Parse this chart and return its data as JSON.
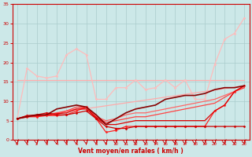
{
  "background_color": "#cce8e8",
  "grid_color": "#aacccc",
  "xlabel": "Vent moyen/en rafales ( km/h )",
  "xlabel_color": "#cc0000",
  "tick_color": "#cc0000",
  "arrow_color": "#cc0000",
  "xlim": [
    -0.5,
    23.5
  ],
  "ylim": [
    0,
    35
  ],
  "yticks": [
    0,
    5,
    10,
    15,
    20,
    25,
    30,
    35
  ],
  "xticks": [
    0,
    1,
    2,
    3,
    4,
    5,
    6,
    7,
    8,
    9,
    10,
    11,
    12,
    13,
    14,
    15,
    16,
    17,
    18,
    19,
    20,
    21,
    22,
    23
  ],
  "lines": [
    {
      "x": [
        0,
        1,
        2,
        3,
        4,
        5,
        6,
        7,
        8,
        9,
        10,
        11,
        12,
        13,
        14,
        15,
        16,
        17,
        18,
        19,
        20,
        21,
        22,
        23
      ],
      "y": [
        15.5,
        15.5,
        15.5,
        15.5,
        15.5,
        15.5,
        15.5,
        15.5,
        15.5,
        15.5,
        15.5,
        15.5,
        15.5,
        15.5,
        15.5,
        15.5,
        15.5,
        15.5,
        15.5,
        15.5,
        15.5,
        15.5,
        15.5,
        15.5
      ],
      "color": "#ffaaaa",
      "lw": 0.9,
      "marker": null
    },
    {
      "x": [
        0,
        1,
        2,
        3,
        4,
        5,
        6,
        7,
        8,
        9,
        10,
        11,
        12,
        13,
        14,
        15,
        16,
        17,
        18,
        19,
        20,
        21,
        22,
        23
      ],
      "y": [
        5.5,
        18.5,
        16.5,
        16.0,
        16.5,
        22.0,
        23.5,
        22.0,
        10.5,
        10.5,
        13.5,
        13.5,
        15.5,
        13.0,
        13.5,
        15.5,
        13.5,
        15.5,
        10.5,
        10.5,
        19.5,
        26.0,
        27.5,
        31.5
      ],
      "color": "#ffbbbb",
      "lw": 0.9,
      "marker": "D",
      "ms": 1.5
    },
    {
      "x": [
        0,
        23
      ],
      "y": [
        5.5,
        14.0
      ],
      "color": "#ffaaaa",
      "lw": 0.9,
      "marker": null
    },
    {
      "x": [
        0,
        1,
        2,
        3,
        4,
        5,
        6,
        7,
        8,
        9,
        10,
        11,
        12,
        13,
        14,
        15,
        16,
        17,
        18,
        19,
        20,
        21,
        22,
        23
      ],
      "y": [
        5.5,
        6.0,
        6.3,
        6.5,
        6.5,
        7.5,
        8.0,
        8.5,
        6.0,
        5.0,
        5.5,
        6.5,
        7.0,
        7.0,
        7.5,
        8.0,
        8.5,
        9.0,
        9.5,
        10.0,
        10.5,
        11.5,
        12.5,
        13.5
      ],
      "color": "#ff6666",
      "lw": 0.9,
      "marker": null
    },
    {
      "x": [
        0,
        1,
        2,
        3,
        4,
        5,
        6,
        7,
        8,
        9,
        10,
        11,
        12,
        13,
        14,
        15,
        16,
        17,
        18,
        19,
        20,
        21,
        22,
        23
      ],
      "y": [
        5.5,
        6.0,
        6.3,
        6.5,
        7.0,
        7.5,
        8.5,
        8.5,
        6.0,
        4.5,
        5.0,
        5.5,
        6.0,
        6.0,
        6.5,
        7.0,
        7.5,
        8.0,
        8.5,
        9.0,
        9.5,
        11.0,
        12.5,
        13.5
      ],
      "color": "#ff4444",
      "lw": 0.9,
      "marker": null
    },
    {
      "x": [
        0,
        1,
        2,
        3,
        4,
        5,
        6,
        7,
        8,
        9,
        10,
        11,
        12,
        13,
        14,
        15,
        16,
        17,
        18,
        19,
        20,
        21,
        22,
        23
      ],
      "y": [
        5.5,
        6.0,
        6.0,
        6.3,
        6.3,
        6.5,
        7.5,
        8.5,
        5.5,
        2.0,
        2.5,
        3.5,
        3.5,
        3.5,
        3.5,
        3.5,
        3.5,
        3.5,
        3.5,
        3.5,
        7.5,
        9.0,
        12.5,
        14.0
      ],
      "color": "#ff2222",
      "lw": 0.9,
      "marker": "D",
      "ms": 1.5
    },
    {
      "x": [
        0,
        1,
        2,
        3,
        4,
        5,
        6,
        7,
        8,
        9,
        10,
        11,
        12,
        13,
        14,
        15,
        16,
        17,
        18,
        19,
        20,
        21,
        22,
        23
      ],
      "y": [
        5.5,
        6.2,
        6.2,
        6.5,
        6.8,
        7.0,
        8.0,
        8.0,
        5.8,
        4.0,
        4.0,
        4.5,
        5.0,
        5.0,
        5.0,
        5.0,
        5.0,
        5.0,
        5.0,
        5.0,
        7.5,
        9.0,
        12.5,
        14.0
      ],
      "color": "#dd0000",
      "lw": 0.9,
      "marker": null
    },
    {
      "x": [
        0,
        1,
        2,
        3,
        4,
        5,
        6,
        7,
        8,
        9,
        10,
        11,
        12,
        13,
        14,
        15,
        16,
        17,
        18,
        19,
        20,
        21,
        22,
        23
      ],
      "y": [
        5.5,
        6.3,
        6.5,
        7.0,
        6.5,
        6.5,
        7.0,
        7.5,
        5.5,
        3.5,
        3.0,
        3.0,
        3.5,
        3.5,
        3.5,
        3.5,
        3.5,
        3.5,
        3.5,
        3.5,
        3.5,
        3.5,
        3.5,
        3.5
      ],
      "color": "#cc0000",
      "lw": 0.9,
      "marker": "D",
      "ms": 1.5
    },
    {
      "x": [
        0,
        1,
        2,
        3,
        4,
        5,
        6,
        7,
        8,
        9,
        10,
        11,
        12,
        13,
        14,
        15,
        16,
        17,
        18,
        19,
        20,
        21,
        22,
        23
      ],
      "y": [
        5.5,
        6.0,
        6.5,
        6.5,
        8.0,
        8.5,
        9.0,
        8.5,
        6.5,
        4.0,
        5.5,
        7.0,
        8.0,
        8.5,
        9.0,
        10.5,
        11.0,
        11.5,
        11.5,
        12.0,
        13.0,
        13.5,
        13.5,
        14.0
      ],
      "color": "#880000",
      "lw": 1.2,
      "marker": null
    }
  ]
}
